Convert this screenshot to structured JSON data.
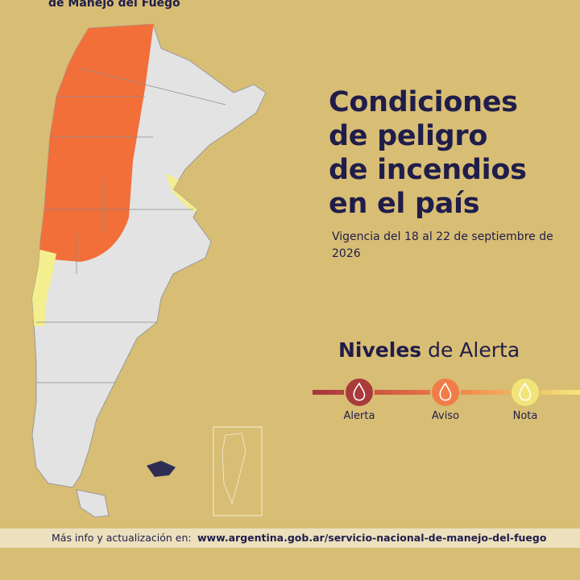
{
  "header": {
    "agency": "de Manejo del Fuego"
  },
  "title": {
    "lines": [
      "Condiciones",
      "de peligro",
      "de incendios",
      "en el país"
    ]
  },
  "subtitle": "Vigencia del 18 al 22 de septiembre de 2026",
  "legend": {
    "title_bold": "Niveles",
    "title_rest": "de Alerta",
    "levels": [
      "Alerta",
      "Aviso",
      "Nota"
    ]
  },
  "footer": {
    "label": "Más info y actualización en:",
    "url": "www.argentina.gob.ar/servicio-nacional-de-manejo-del-fuego"
  }
}
